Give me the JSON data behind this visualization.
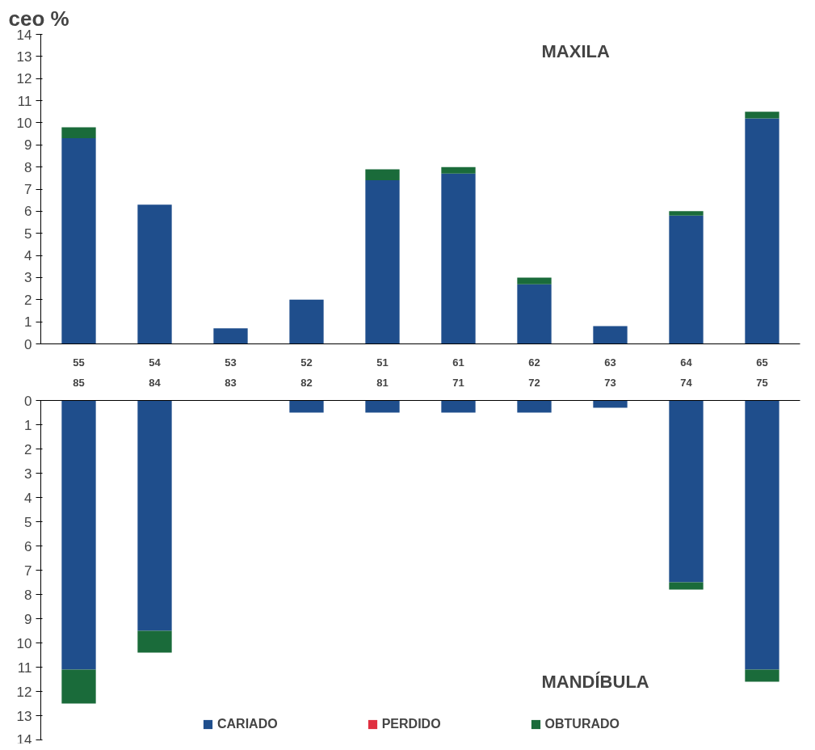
{
  "chart_data": [
    {
      "type": "bar",
      "title": "ceo %",
      "annotations": [
        "MAXILA"
      ],
      "stacked": true,
      "categories": [
        "55",
        "54",
        "53",
        "52",
        "51",
        "61",
        "62",
        "63",
        "64",
        "65"
      ],
      "series": [
        {
          "color": "#1f4e8c",
          "values": [
            9.3,
            6.3,
            0.7,
            2.0,
            7.4,
            7.7,
            2.7,
            0.8,
            5.8,
            10.2
          ]
        },
        {
          "color": "#e03040",
          "values": [
            0,
            0,
            0,
            0,
            0,
            0,
            0,
            0,
            0,
            0
          ]
        },
        {
          "color": "#1a6b3a",
          "values": [
            0.5,
            0,
            0,
            0,
            0.5,
            0.3,
            0.3,
            0,
            0.2,
            0.3
          ]
        }
      ],
      "ylim": [
        0,
        14
      ],
      "yticks": [
        0,
        1,
        2,
        3,
        4,
        5,
        6,
        7,
        8,
        9,
        10,
        11,
        12,
        13,
        14
      ],
      "grid": false,
      "legend": false
    },
    {
      "type": "bar",
      "annotations": [
        "MANDÍBULA"
      ],
      "stacked": true,
      "categories": [
        "85",
        "84",
        "83",
        "82",
        "81",
        "71",
        "72",
        "73",
        "74",
        "75"
      ],
      "series": [
        {
          "name": "CARIADO",
          "color": "#1f4e8c",
          "values": [
            11.1,
            9.5,
            0,
            0.5,
            0.5,
            0.5,
            0.5,
            0.3,
            7.5,
            11.1
          ]
        },
        {
          "name": "PERDIDO",
          "color": "#e03040",
          "values": [
            0,
            0,
            0,
            0,
            0,
            0,
            0,
            0,
            0,
            0
          ]
        },
        {
          "name": "OBTURADO",
          "color": "#1a6b3a",
          "values": [
            1.4,
            0.9,
            0,
            0,
            0,
            0,
            0,
            0,
            0.3,
            0.5
          ]
        }
      ],
      "ylim": [
        14,
        0
      ],
      "yticks": [
        0,
        1,
        2,
        3,
        4,
        5,
        6,
        7,
        8,
        9,
        10,
        11,
        12,
        13,
        14
      ],
      "grid": false,
      "legend": "bottom"
    }
  ]
}
